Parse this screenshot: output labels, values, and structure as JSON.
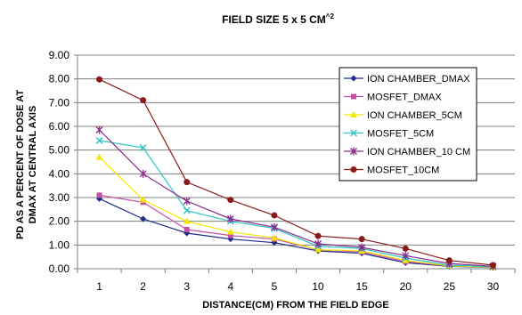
{
  "chart_data": {
    "type": "line",
    "title": "FIELD SIZE 5 x 5 CM^2",
    "title_main": "FIELD SIZE 5 x 5 CM",
    "title_sup": "^2",
    "xlabel": "DISTANCE(CM) FROM THE FIELD EDGE",
    "ylabel_line1": "PD AS A PERCENT OF DOSE AT",
    "ylabel_line2": "DMAX AT   CENTRAL AXIS",
    "categories": [
      "1",
      "2",
      "3",
      "4",
      "5",
      "10",
      "15",
      "20",
      "25",
      "30"
    ],
    "ylim": [
      0,
      9
    ],
    "yticks": [
      "0.00",
      "1.00",
      "2.00",
      "3.00",
      "4.00",
      "5.00",
      "6.00",
      "7.00",
      "8.00",
      "9.00"
    ],
    "grid": "horizontal",
    "legend_position": "top-right",
    "series": [
      {
        "name": "ION CHAMBER_DMAX",
        "color": "#1f2a8c",
        "marker": "diamond",
        "values": [
          2.95,
          2.1,
          1.5,
          1.25,
          1.1,
          0.75,
          0.65,
          0.25,
          0.1,
          0.05
        ]
      },
      {
        "name": "MOSFET_DMAX",
        "color": "#c24fa8",
        "marker": "square",
        "values": [
          3.1,
          2.8,
          1.65,
          1.4,
          1.25,
          0.8,
          0.7,
          0.3,
          0.12,
          0.07
        ]
      },
      {
        "name": "ION CHAMBER_5CM",
        "color": "#f2e600",
        "marker": "triangle",
        "values": [
          4.7,
          2.9,
          2.0,
          1.55,
          1.3,
          0.8,
          0.75,
          0.35,
          0.12,
          0.06
        ]
      },
      {
        "name": "MOSFET_5CM",
        "color": "#2ec4c4",
        "marker": "x",
        "values": [
          5.4,
          5.1,
          2.45,
          2.0,
          1.7,
          0.95,
          0.85,
          0.45,
          0.15,
          0.08
        ]
      },
      {
        "name": "ION CHAMBER_10 CM",
        "color": "#8a2a8a",
        "marker": "star",
        "values": [
          5.85,
          4.0,
          2.85,
          2.1,
          1.75,
          1.05,
          0.9,
          0.55,
          0.22,
          0.1
        ]
      },
      {
        "name": "MOSFET_10CM",
        "color": "#8b1a1a",
        "marker": "circle",
        "values": [
          7.98,
          7.1,
          3.65,
          2.9,
          2.25,
          1.38,
          1.25,
          0.85,
          0.35,
          0.15
        ]
      }
    ]
  }
}
